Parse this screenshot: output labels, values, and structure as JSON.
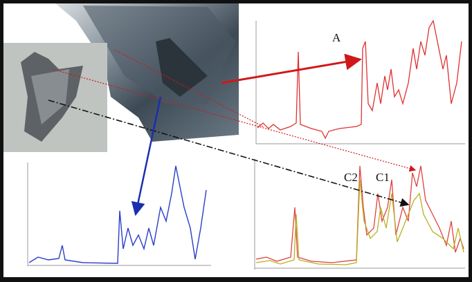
{
  "labels": {
    "a": "A",
    "c2": "C2",
    "c1": "C1"
  }
}
